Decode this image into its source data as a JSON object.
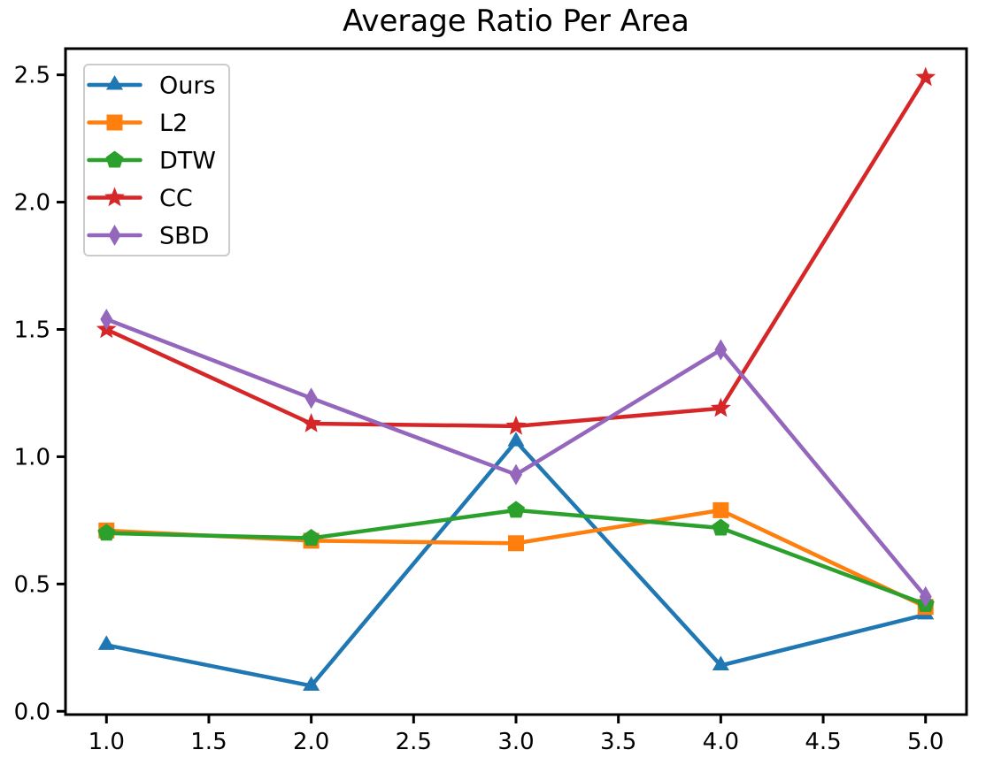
{
  "chart_data": {
    "type": "line",
    "title": "Average Ratio Per Area",
    "xlabel": "",
    "ylabel": "",
    "x": [
      1.0,
      2.0,
      3.0,
      4.0,
      5.0
    ],
    "series": [
      {
        "name": "Ours",
        "color": "#1f77b4",
        "marker": "triangle_up",
        "values": [
          0.26,
          0.1,
          1.06,
          0.18,
          0.38
        ]
      },
      {
        "name": "L2",
        "color": "#ff7f0e",
        "marker": "square",
        "values": [
          0.71,
          0.67,
          0.66,
          0.79,
          0.41
        ]
      },
      {
        "name": "DTW",
        "color": "#2ca02c",
        "marker": "pentagon",
        "values": [
          0.7,
          0.68,
          0.79,
          0.72,
          0.42
        ]
      },
      {
        "name": "CC",
        "color": "#d62728",
        "marker": "star",
        "values": [
          1.5,
          1.13,
          1.12,
          1.19,
          2.49
        ]
      },
      {
        "name": "SBD",
        "color": "#9467bd",
        "marker": "thin_diamond",
        "values": [
          1.54,
          1.23,
          0.93,
          1.42,
          0.45
        ]
      }
    ],
    "xlim": [
      0.8,
      5.2
    ],
    "ylim": [
      -0.013,
      2.603
    ],
    "x_ticks": [
      1.0,
      1.5,
      2.0,
      2.5,
      3.0,
      3.5,
      4.0,
      4.5,
      5.0
    ],
    "y_ticks": [
      0.0,
      0.5,
      1.0,
      1.5,
      2.0,
      2.5
    ],
    "grid": false,
    "legend_position": "upper left",
    "axis_color": "#000000",
    "legend_border_color": "#cccccc",
    "background_color": "#ffffff"
  }
}
